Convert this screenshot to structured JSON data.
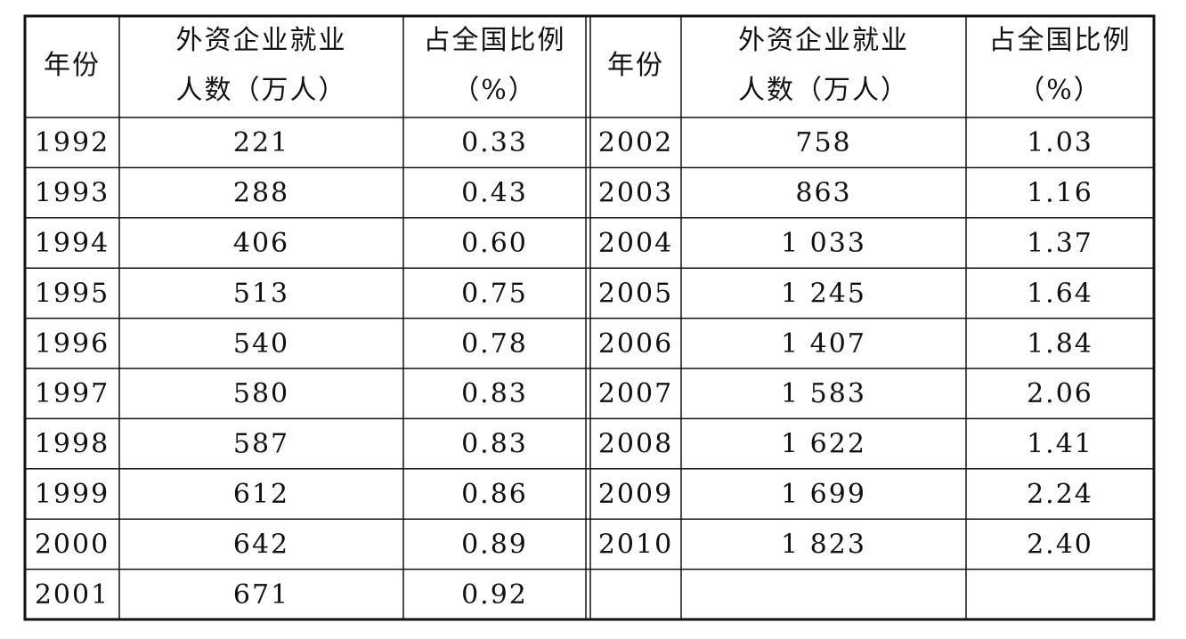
{
  "left": {
    "header": [
      [
        "年份"
      ],
      [
        "外资企业就业",
        "人数（万人）"
      ],
      [
        "占全国比例",
        "（%）"
      ]
    ],
    "rows": [
      [
        "1992",
        "221",
        "0.33"
      ],
      [
        "1993",
        "288",
        "0.43"
      ],
      [
        "1994",
        "406",
        "0.60"
      ],
      [
        "1995",
        "513",
        "0.75"
      ],
      [
        "1996",
        "540",
        "0.78"
      ],
      [
        "1997",
        "580",
        "0.83"
      ],
      [
        "1998",
        "587",
        "0.83"
      ],
      [
        "1999",
        "612",
        "0.86"
      ],
      [
        "2000",
        "642",
        "0.89"
      ],
      [
        "2001",
        "671",
        "0.92"
      ]
    ]
  },
  "right": {
    "header": [
      [
        "年份"
      ],
      [
        "外资企业就业",
        "人数（万人）"
      ],
      [
        "占全国比例",
        "（%）"
      ]
    ],
    "rows": [
      [
        "2002",
        "758",
        "1.03"
      ],
      [
        "2003",
        "863",
        "1.16"
      ],
      [
        "2004",
        "1 033",
        "1.37"
      ],
      [
        "2005",
        "1 245",
        "1.64"
      ],
      [
        "2006",
        "1 407",
        "1.84"
      ],
      [
        "2007",
        "1 583",
        "2.06"
      ],
      [
        "2008",
        "1 622",
        "1.41"
      ],
      [
        "2009",
        "1 699",
        "2.24"
      ],
      [
        "2010",
        "1 823",
        "2.40"
      ]
    ]
  }
}
